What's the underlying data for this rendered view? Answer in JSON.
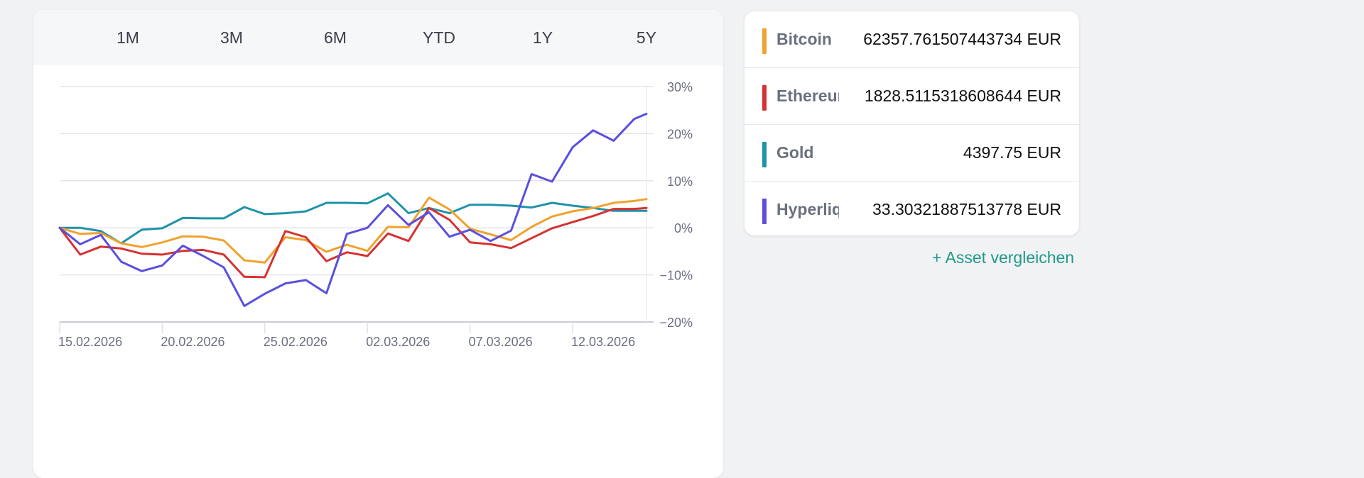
{
  "tabs": [
    "1M",
    "3M",
    "6M",
    "YTD",
    "1Y",
    "5Y"
  ],
  "assets": [
    {
      "name": "Bitcoin",
      "price": "62357.761507443734 EUR",
      "color": "#f0a22e"
    },
    {
      "name": "Ethereum",
      "price": "1828.5115318608644 EUR",
      "color": "#d63232"
    },
    {
      "name": "Gold",
      "price": "4397.75 EUR",
      "color": "#1f93a8"
    },
    {
      "name": "Hyperliquid",
      "price": "33.30321887513778 EUR",
      "color": "#5a4fe0"
    }
  ],
  "add_asset": "+ Asset vergleichen",
  "chart_data": {
    "type": "line",
    "xlabel": "",
    "ylabel": "",
    "x_unit": "days since 15.02.2026",
    "x": [
      0,
      1,
      2,
      3,
      4,
      5,
      6,
      7,
      8,
      9,
      10,
      11,
      12,
      13,
      14,
      15,
      16,
      17,
      18,
      19,
      20,
      21,
      22,
      23,
      24,
      25,
      26,
      27,
      28,
      28.6
    ],
    "xlim": [
      0,
      28.6
    ],
    "xticks": [
      {
        "v": 0,
        "label": "15.02.2026"
      },
      {
        "v": 5,
        "label": "20.02.2026"
      },
      {
        "v": 10,
        "label": "25.02.2026"
      },
      {
        "v": 15,
        "label": "02.03.2026"
      },
      {
        "v": 20,
        "label": "07.03.2026"
      },
      {
        "v": 25,
        "label": "12.03.2026"
      }
    ],
    "ylim": [
      -20,
      30
    ],
    "yticks": [
      {
        "v": 30,
        "label": "30%"
      },
      {
        "v": 20,
        "label": "20%"
      },
      {
        "v": 10,
        "label": "10%"
      },
      {
        "v": 0,
        "label": "0%"
      },
      {
        "v": -10,
        "label": "−10%"
      },
      {
        "v": -20,
        "label": "−20%"
      }
    ],
    "grid": true,
    "series": [
      {
        "name": "Gold",
        "color": "#1f93a8",
        "values": [
          0,
          0,
          -0.7,
          -3.3,
          -0.4,
          -0.1,
          2.1,
          2.0,
          2.0,
          4.4,
          2.9,
          3.1,
          3.5,
          5.3,
          5.3,
          5.2,
          7.3,
          3.1,
          4.2,
          3.1,
          4.9,
          4.9,
          4.7,
          4.3,
          5.3,
          4.7,
          4.2,
          3.6,
          3.6,
          3.6
        ]
      },
      {
        "name": "Bitcoin",
        "color": "#f0a22e",
        "values": [
          0,
          -1.3,
          -1.1,
          -3.3,
          -4.1,
          -3.1,
          -1.8,
          -1.9,
          -2.7,
          -6.9,
          -7.4,
          -2.0,
          -2.6,
          -5.1,
          -3.6,
          -4.9,
          0.2,
          0.1,
          6.4,
          3.9,
          -0.2,
          -1.4,
          -2.6,
          0.2,
          2.4,
          3.5,
          4.2,
          5.3,
          5.7,
          6.1
        ]
      },
      {
        "name": "Ethereum",
        "color": "#d63232",
        "values": [
          0,
          -5.7,
          -4.0,
          -4.4,
          -5.5,
          -5.7,
          -4.9,
          -4.7,
          -5.7,
          -10.4,
          -10.5,
          -0.7,
          -2.0,
          -7.1,
          -5.2,
          -6.0,
          -1.2,
          -2.8,
          4.2,
          1.7,
          -3.1,
          -3.5,
          -4.3,
          -2.2,
          -0.1,
          1.2,
          2.5,
          4.0,
          4.0,
          4.2
        ]
      },
      {
        "name": "Hyperliquid",
        "color": "#5a4fe0",
        "values": [
          0,
          -3.5,
          -1.5,
          -7.2,
          -9.2,
          -8.0,
          -3.8,
          -6.0,
          -8.4,
          -16.6,
          -14.0,
          -11.8,
          -11.1,
          -13.9,
          -1.3,
          0,
          4.8,
          0.6,
          3.3,
          -1.9,
          -0.4,
          -2.8,
          -0.6,
          11.4,
          9.8,
          17.1,
          20.7,
          18.5,
          23.1,
          24.2
        ]
      }
    ]
  }
}
